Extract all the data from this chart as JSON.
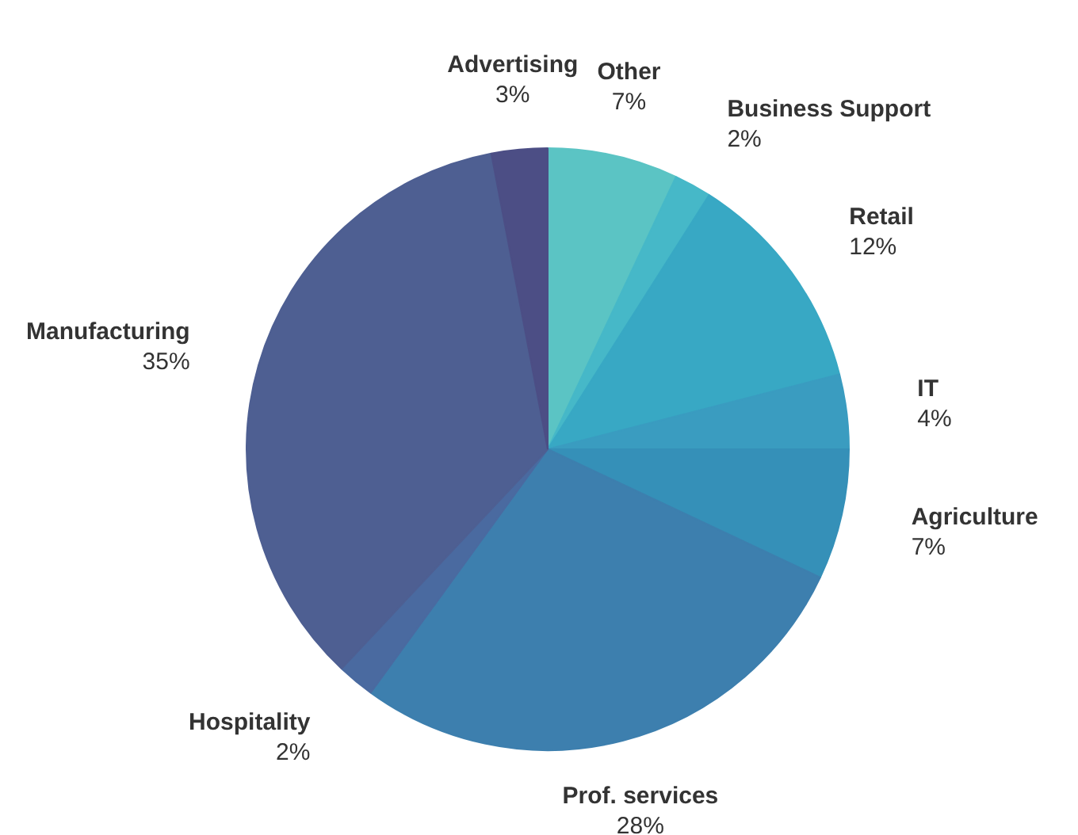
{
  "chart_data": {
    "type": "pie",
    "categories": [
      "Other",
      "Business Support",
      "Retail",
      "IT",
      "Agriculture",
      "Prof. services",
      "Hospitality",
      "Manufacturing",
      "Advertising"
    ],
    "values": [
      7,
      2,
      12,
      4,
      7,
      28,
      2,
      35,
      3
    ],
    "value_labels": [
      "7%",
      "2%",
      "12%",
      "4%",
      "7%",
      "28%",
      "2%",
      "35%",
      "3%"
    ],
    "colors": [
      "#5bc4c4",
      "#46b8c8",
      "#38a8c4",
      "#3a9cc0",
      "#3590b8",
      "#3d7fae",
      "#4a6aa0",
      "#4e5f92",
      "#4c4e85"
    ]
  }
}
